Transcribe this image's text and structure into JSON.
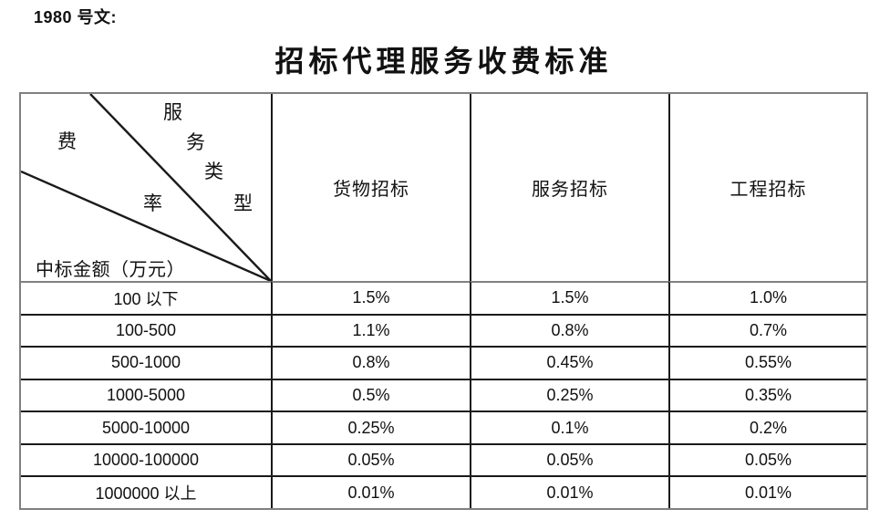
{
  "page": {
    "doc_label": "1980 号文:",
    "title": "招标代理服务收费标准"
  },
  "table": {
    "corner": {
      "type_chars": [
        "服",
        "务",
        "类",
        "型"
      ],
      "fee_chars": [
        "费",
        "率"
      ],
      "row_axis_label": "中标金额（万元）"
    },
    "columns": [
      "货物招标",
      "服务招标",
      "工程招标"
    ],
    "rows": [
      [
        "100 以下",
        "1.5%",
        "1.5%",
        "1.0%"
      ],
      [
        "100-500",
        "1.1%",
        "0.8%",
        "0.7%"
      ],
      [
        "500-1000",
        "0.8%",
        "0.45%",
        "0.55%"
      ],
      [
        "1000-5000",
        "0.5%",
        "0.25%",
        "0.35%"
      ],
      [
        "5000-10000",
        "0.25%",
        "0.1%",
        "0.2%"
      ],
      [
        "10000-100000",
        "0.05%",
        "0.05%",
        "0.05%"
      ],
      [
        "1000000 以上",
        "0.01%",
        "0.01%",
        "0.01%"
      ]
    ]
  },
  "colors": {
    "background": "#ffffff",
    "text": "#111111",
    "outer_border": "#808080",
    "inner_border": "#1a1a1a"
  }
}
